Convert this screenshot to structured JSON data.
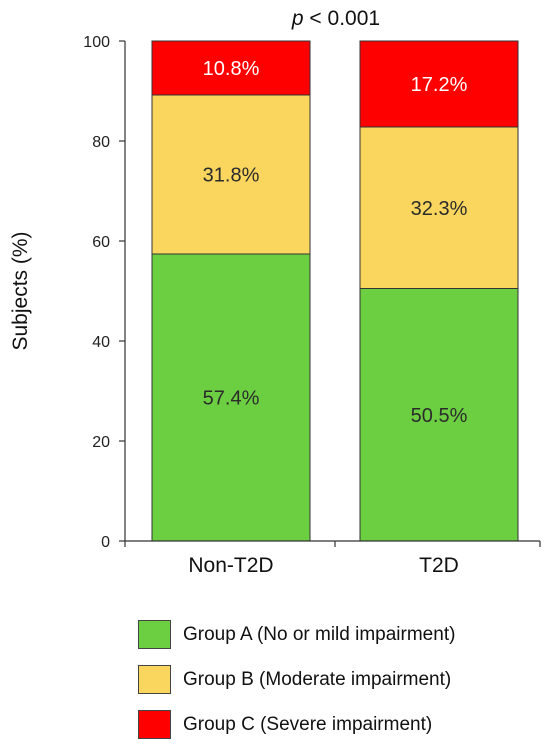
{
  "chart_data": {
    "type": "bar",
    "stacked": true,
    "categories": [
      "Non-T2D",
      "T2D"
    ],
    "series": [
      {
        "name": "Group A (No or mild impairment)",
        "values": [
          57.4,
          50.5
        ],
        "labels": [
          "57.4%",
          "50.5%"
        ],
        "color": "#6ccf42"
      },
      {
        "name": "Group B (Moderate impairment)",
        "values": [
          31.8,
          32.3
        ],
        "labels": [
          "31.8%",
          "32.3%"
        ],
        "color": "#fad65e"
      },
      {
        "name": "Group C (Severe impairment)",
        "values": [
          10.8,
          17.2
        ],
        "labels": [
          "10.8%",
          "17.2%"
        ],
        "color": "#ff0000"
      }
    ],
    "ylabel": "Subjects (%)",
    "ylim": [
      0,
      100
    ],
    "yticks": [
      0,
      20,
      40,
      60,
      80,
      100
    ],
    "annotation": {
      "italic": "p",
      "rest": " < 0.001"
    },
    "grid": false,
    "legend_position": "bottom"
  }
}
